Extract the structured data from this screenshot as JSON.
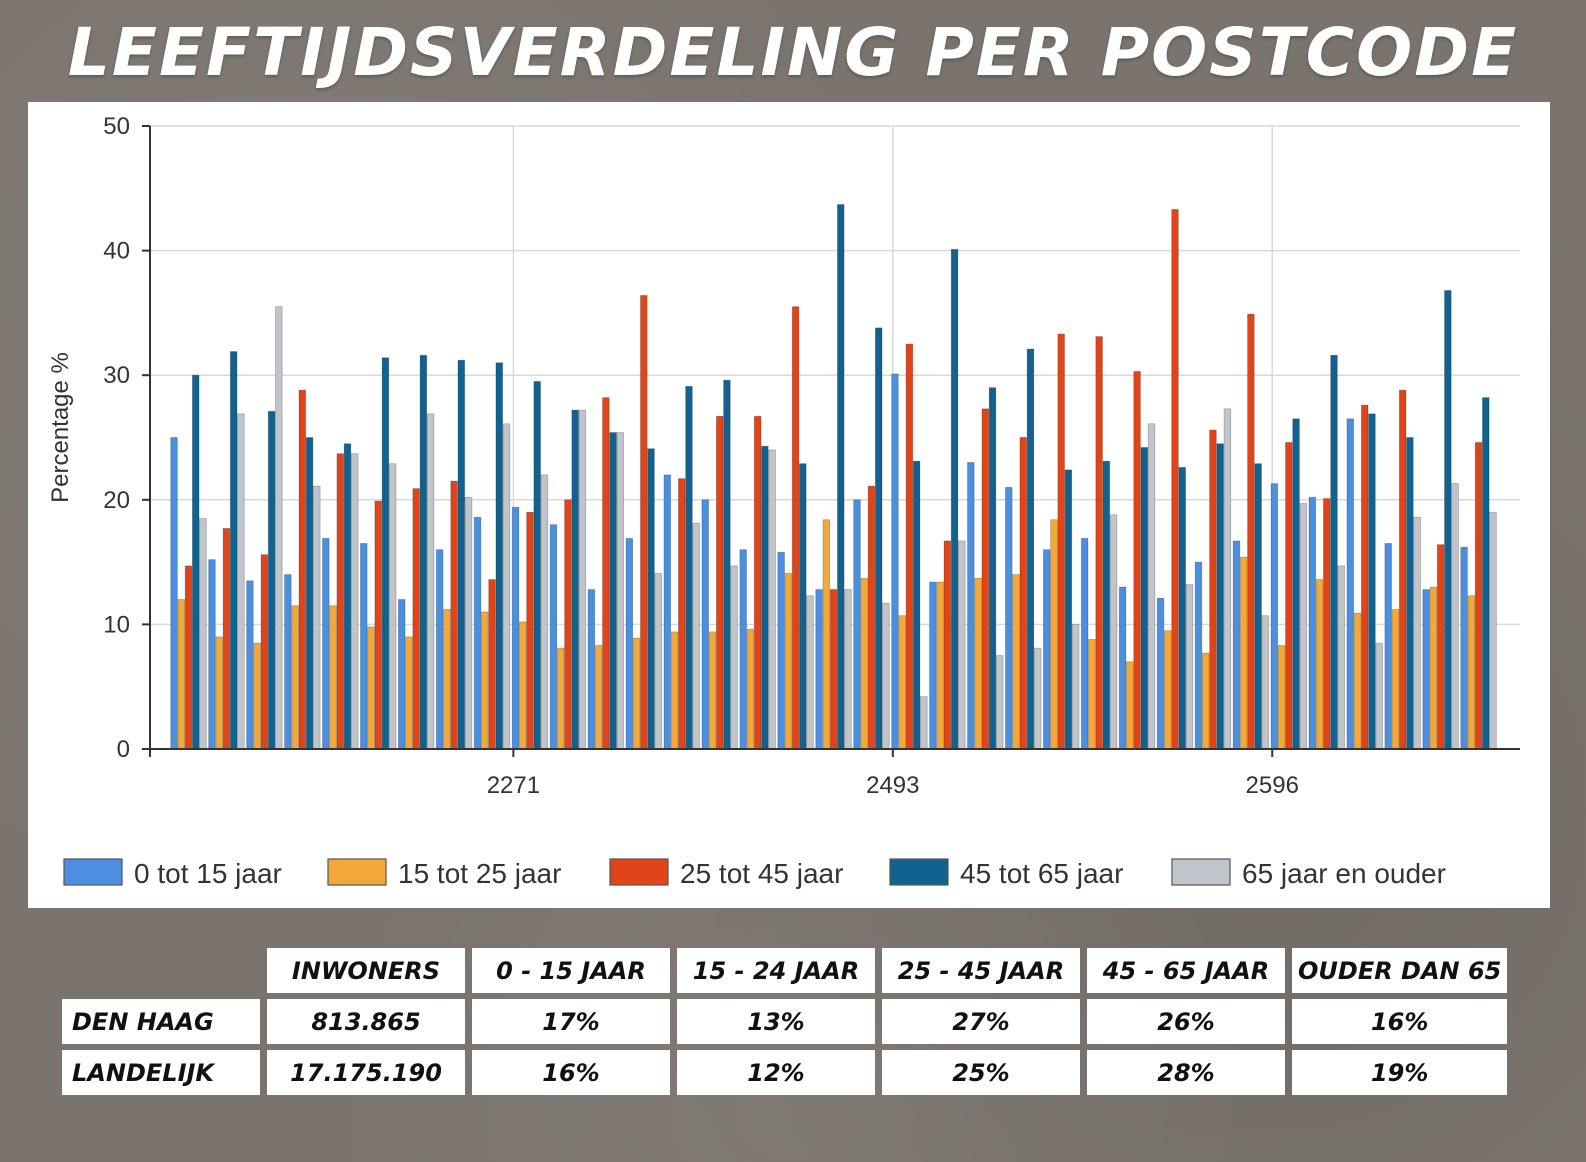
{
  "title": "LEEFTIJDSVERDELING PER POSTCODE",
  "chart_data": {
    "type": "bar",
    "ylabel": "Percentage %",
    "ylim": [
      0,
      50
    ],
    "yticks": [
      0,
      10,
      20,
      30,
      40,
      50
    ],
    "x_tick_labels": [
      {
        "label": "2271",
        "after_group": 9
      },
      {
        "label": "2493",
        "after_group": 19
      },
      {
        "label": "2596",
        "after_group": 29
      }
    ],
    "grid": true,
    "legend_position": "bottom",
    "series": [
      {
        "name": "0 tot 15 jaar",
        "color": "#4a8fe0",
        "values": [
          25,
          15.2,
          13.5,
          14,
          16.9,
          16.5,
          12,
          16,
          18.6,
          19.4,
          18,
          12.8,
          16.9,
          22,
          20,
          16,
          15.8,
          12.8,
          20,
          30.1,
          13.4,
          23,
          21,
          16,
          16.9,
          13,
          12.1,
          15,
          16.7,
          21.3,
          20.2,
          26.5,
          16.5,
          12.8,
          16.2
        ]
      },
      {
        "name": "15 tot 25 jaar",
        "color": "#f3a93a",
        "values": [
          12,
          9,
          8.5,
          11.5,
          11.5,
          9.8,
          9,
          11.2,
          11,
          10.2,
          8.1,
          8.3,
          8.9,
          9.4,
          9.4,
          9.6,
          14.1,
          18.4,
          13.7,
          10.7,
          13.4,
          13.7,
          14,
          18.4,
          8.8,
          7,
          9.5,
          7.7,
          15.4,
          8.3,
          13.6,
          10.9,
          11.2,
          13,
          12.3
        ]
      },
      {
        "name": "25 tot 45 jaar",
        "color": "#e04418",
        "values": [
          14.7,
          17.7,
          15.6,
          28.8,
          23.7,
          19.9,
          20.9,
          21.5,
          13.6,
          19,
          20,
          28.2,
          36.4,
          21.7,
          26.7,
          26.7,
          35.5,
          12.8,
          21.1,
          32.5,
          16.7,
          27.3,
          25,
          33.3,
          33.1,
          30.3,
          43.3,
          25.6,
          34.9,
          24.6,
          20.1,
          27.6,
          28.8,
          16.4,
          24.6
        ]
      },
      {
        "name": "45 tot 65 jaar",
        "color": "#12628f",
        "values": [
          30,
          31.9,
          27.1,
          25,
          24.5,
          31.4,
          31.6,
          31.2,
          31,
          29.5,
          27.2,
          25.4,
          24.1,
          29.1,
          29.6,
          24.3,
          22.9,
          43.7,
          33.8,
          23.1,
          40.1,
          29,
          32.1,
          22.4,
          23.1,
          24.2,
          22.6,
          24.5,
          22.9,
          26.5,
          31.6,
          26.9,
          25,
          36.8,
          28.2
        ]
      },
      {
        "name": "65 jaar en ouder",
        "color": "#c0c5cc",
        "values": [
          18.5,
          26.9,
          35.5,
          21.1,
          23.7,
          22.9,
          26.9,
          20.2,
          26.1,
          22,
          27.2,
          25.4,
          14.1,
          18.1,
          14.7,
          24,
          12.3,
          12.8,
          11.7,
          4.2,
          16.7,
          7.5,
          8.1,
          10,
          18.8,
          26.1,
          13.2,
          27.3,
          10.7,
          19.7,
          14.7,
          8.5,
          18.6,
          21.3,
          19
        ]
      }
    ]
  },
  "table": {
    "headers": [
      "INWONERS",
      "0 - 15 JAAR",
      "15 - 24 JAAR",
      "25 - 45 JAAR",
      "45 - 65 JAAR",
      "OUDER DAN 65"
    ],
    "rows": [
      {
        "label": "DEN HAAG",
        "cells": [
          "813.865",
          "17%",
          "13%",
          "27%",
          "26%",
          "16%"
        ]
      },
      {
        "label": "LANDELIJK",
        "cells": [
          "17.175.190",
          "16%",
          "12%",
          "25%",
          "28%",
          "19%"
        ]
      }
    ]
  }
}
